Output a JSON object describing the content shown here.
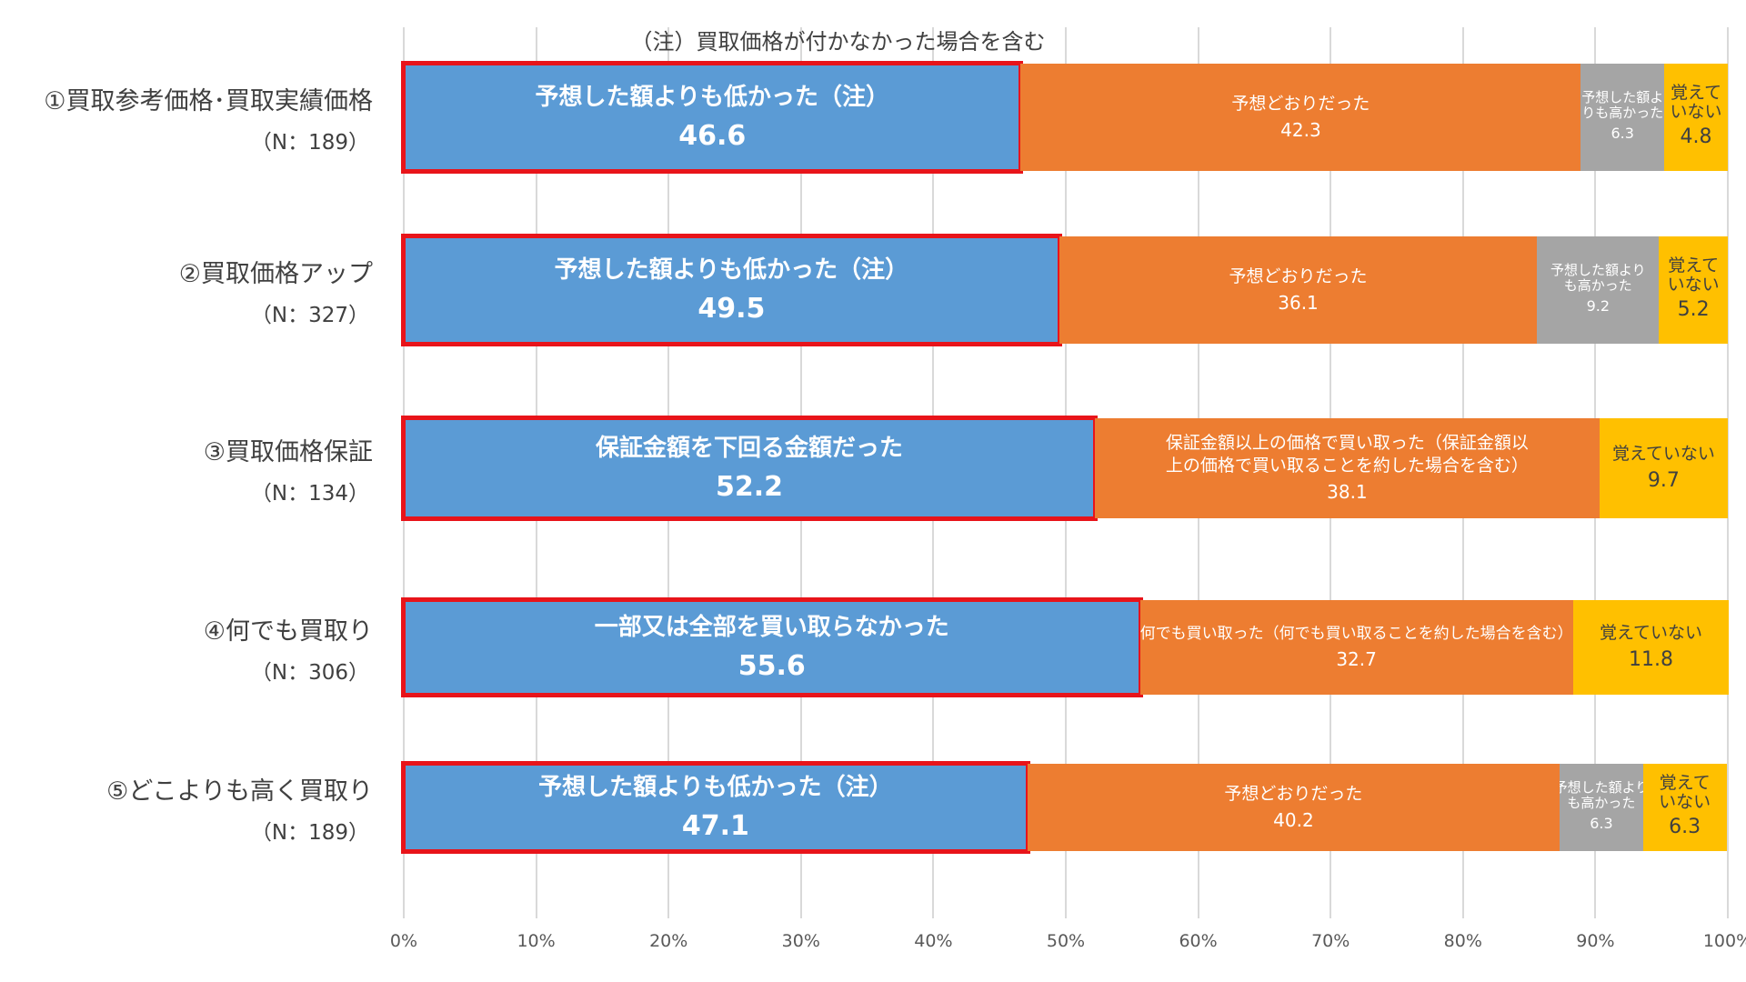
{
  "chart_data": {
    "type": "bar",
    "orientation": "horizontal",
    "stacked": true,
    "note": "（注）買取価格が付かなかった場合を含む",
    "xlim": [
      0,
      100
    ],
    "xticks": [
      "0%",
      "10%",
      "20%",
      "30%",
      "40%",
      "50%",
      "60%",
      "70%",
      "80%",
      "90%",
      "100%"
    ],
    "grid": true,
    "colors": {
      "blue": "#5b9bd5",
      "orange": "#ed7d31",
      "gray": "#a5a5a5",
      "yellow": "#ffc000",
      "highlight": "#e8141a"
    },
    "categories": [
      {
        "label": "①買取参考価格･買取実績価格",
        "n": "（N：189）",
        "segments": [
          {
            "label": [
              "予想した額よりも低かった（注）"
            ],
            "value": 46.6,
            "display": "46.6",
            "color": "blue",
            "highlight": true
          },
          {
            "label": [
              "予想どおりだった"
            ],
            "value": 42.3,
            "display": "42.3",
            "color": "orange"
          },
          {
            "label": [
              "予想した額よ",
              "りも高かった"
            ],
            "value": 6.3,
            "display": "6.3",
            "color": "gray"
          },
          {
            "label": [
              "覚えて",
              "いない"
            ],
            "value": 4.8,
            "display": "4.8",
            "color": "yellow"
          }
        ]
      },
      {
        "label": "②買取価格アップ",
        "n": "（N：327）",
        "segments": [
          {
            "label": [
              "予想した額よりも低かった（注）"
            ],
            "value": 49.5,
            "display": "49.5",
            "color": "blue",
            "highlight": true
          },
          {
            "label": [
              "予想どおりだった"
            ],
            "value": 36.1,
            "display": "36.1",
            "color": "orange"
          },
          {
            "label": [
              "予想した額より",
              "も高かった"
            ],
            "value": 9.2,
            "display": "9.2",
            "color": "gray"
          },
          {
            "label": [
              "覚えて",
              "いない"
            ],
            "value": 5.2,
            "display": "5.2",
            "color": "yellow"
          }
        ]
      },
      {
        "label": "③買取価格保証",
        "n": "（N：134）",
        "segments": [
          {
            "label": [
              "保証金額を下回る金額だった"
            ],
            "value": 52.2,
            "display": "52.2",
            "color": "blue",
            "highlight": true
          },
          {
            "label": [
              "保証金額以上の価格で買い取った（保証金額以",
              "上の価格で買い取ることを約した場合を含む）"
            ],
            "value": 38.1,
            "display": "38.1",
            "color": "orange"
          },
          {
            "label": [
              "覚えていない"
            ],
            "value": 9.7,
            "display": "9.7",
            "color": "yellow"
          }
        ]
      },
      {
        "label": "④何でも買取り",
        "n": "（N：306）",
        "segments": [
          {
            "label": [
              "一部又は全部を買い取らなかった"
            ],
            "value": 55.6,
            "display": "55.6",
            "color": "blue",
            "highlight": true
          },
          {
            "label": [
              "何でも買い取った（何でも買い取ることを約した場合を含む）"
            ],
            "value": 32.7,
            "display": "32.7",
            "color": "orange"
          },
          {
            "label": [
              "覚えていない"
            ],
            "value": 11.8,
            "display": "11.8",
            "color": "yellow"
          }
        ]
      },
      {
        "label": "⑤どこよりも高く買取り",
        "n": "（N：189）",
        "segments": [
          {
            "label": [
              "予想した額よりも低かった（注）"
            ],
            "value": 47.1,
            "display": "47.1",
            "color": "blue",
            "highlight": true
          },
          {
            "label": [
              "予想どおりだった"
            ],
            "value": 40.2,
            "display": "40.2",
            "color": "orange"
          },
          {
            "label": [
              "予想した額より",
              "も高かった"
            ],
            "value": 6.3,
            "display": "6.3",
            "color": "gray"
          },
          {
            "label": [
              "覚えて",
              "いない"
            ],
            "value": 6.3,
            "display": "6.3",
            "color": "yellow"
          }
        ]
      }
    ]
  }
}
